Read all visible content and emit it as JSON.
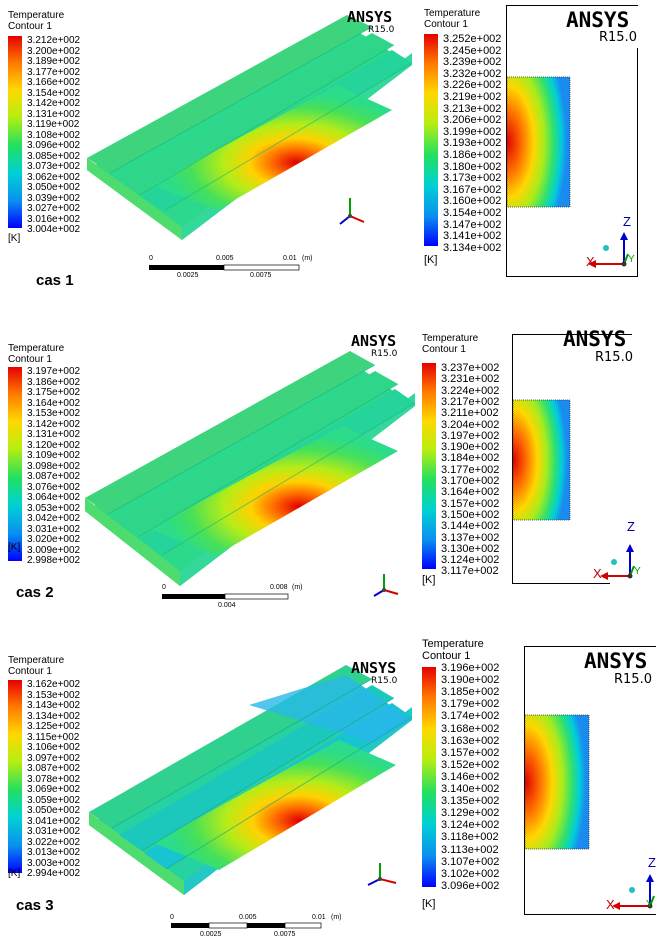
{
  "legend_title": "Temperature",
  "legend_subtitle": "Contour 1",
  "unit": "[K]",
  "brand": "ANSYS",
  "version": "R15.0",
  "axis_labels": {
    "x": "X",
    "y": "Y",
    "z": "Z"
  },
  "cases": [
    {
      "label": "cas 1",
      "left_legend": [
        "3.212e+002",
        "3.200e+002",
        "3.189e+002",
        "3.177e+002",
        "3.166e+002",
        "3.154e+002",
        "3.142e+002",
        "3.131e+002",
        "3.119e+002",
        "3.108e+002",
        "3.096e+002",
        "3.085e+002",
        "3.073e+002",
        "3.062e+002",
        "3.050e+002",
        "3.039e+002",
        "3.027e+002",
        "3.016e+002",
        "3.004e+002"
      ],
      "right_legend": [
        "3.252e+002",
        "3.245e+002",
        "3.239e+002",
        "3.232e+002",
        "3.226e+002",
        "3.219e+002",
        "3.213e+002",
        "3.206e+002",
        "3.199e+002",
        "3.193e+002",
        "3.186e+002",
        "3.180e+002",
        "3.173e+002",
        "3.167e+002",
        "3.160e+002",
        "3.154e+002",
        "3.147e+002",
        "3.141e+002",
        "3.134e+002"
      ],
      "scale_top": [
        "0",
        "0.005",
        "0.01",
        "(m)"
      ],
      "scale_bottom": [
        "0.0025",
        "0.0075"
      ]
    },
    {
      "label": "cas 2",
      "left_legend": [
        "3.197e+002",
        "3.186e+002",
        "3.175e+002",
        "3.164e+002",
        "3.153e+002",
        "3.142e+002",
        "3.131e+002",
        "3.120e+002",
        "3.109e+002",
        "3.098e+002",
        "3.087e+002",
        "3.076e+002",
        "3.064e+002",
        "3.053e+002",
        "3.042e+002",
        "3.031e+002",
        "3.020e+002",
        "3.009e+002",
        "2.998e+002"
      ],
      "right_legend": [
        "3.237e+002",
        "3.231e+002",
        "3.224e+002",
        "3.217e+002",
        "3.211e+002",
        "3.204e+002",
        "3.197e+002",
        "3.190e+002",
        "3.184e+002",
        "3.177e+002",
        "3.170e+002",
        "3.164e+002",
        "3.157e+002",
        "3.150e+002",
        "3.144e+002",
        "3.137e+002",
        "3.130e+002",
        "3.124e+002",
        "3.117e+002"
      ],
      "scale_top": [
        "0",
        "0.008",
        "(m)"
      ],
      "scale_bottom": [
        "0.004"
      ]
    },
    {
      "label": "cas 3",
      "left_legend": [
        "3.162e+002",
        "3.153e+002",
        "3.143e+002",
        "3.134e+002",
        "3.125e+002",
        "3.115e+002",
        "3.106e+002",
        "3.097e+002",
        "3.087e+002",
        "3.078e+002",
        "3.069e+002",
        "3.059e+002",
        "3.050e+002",
        "3.041e+002",
        "3.031e+002",
        "3.022e+002",
        "3.013e+002",
        "3.003e+002",
        "2.994e+002"
      ],
      "right_legend": [
        "3.196e+002",
        "3.190e+002",
        "3.185e+002",
        "3.179e+002",
        "3.174e+002",
        "3.168e+002",
        "3.163e+002",
        "3.157e+002",
        "3.152e+002",
        "3.146e+002",
        "3.140e+002",
        "3.135e+002",
        "3.129e+002",
        "3.124e+002",
        "3.118e+002",
        "3.113e+002",
        "3.107e+002",
        "3.102e+002",
        "3.096e+002"
      ],
      "scale_top": [
        "0",
        "0.005",
        "0.01",
        "(m)"
      ],
      "scale_bottom": [
        "0.0025",
        "0.0075"
      ]
    }
  ]
}
